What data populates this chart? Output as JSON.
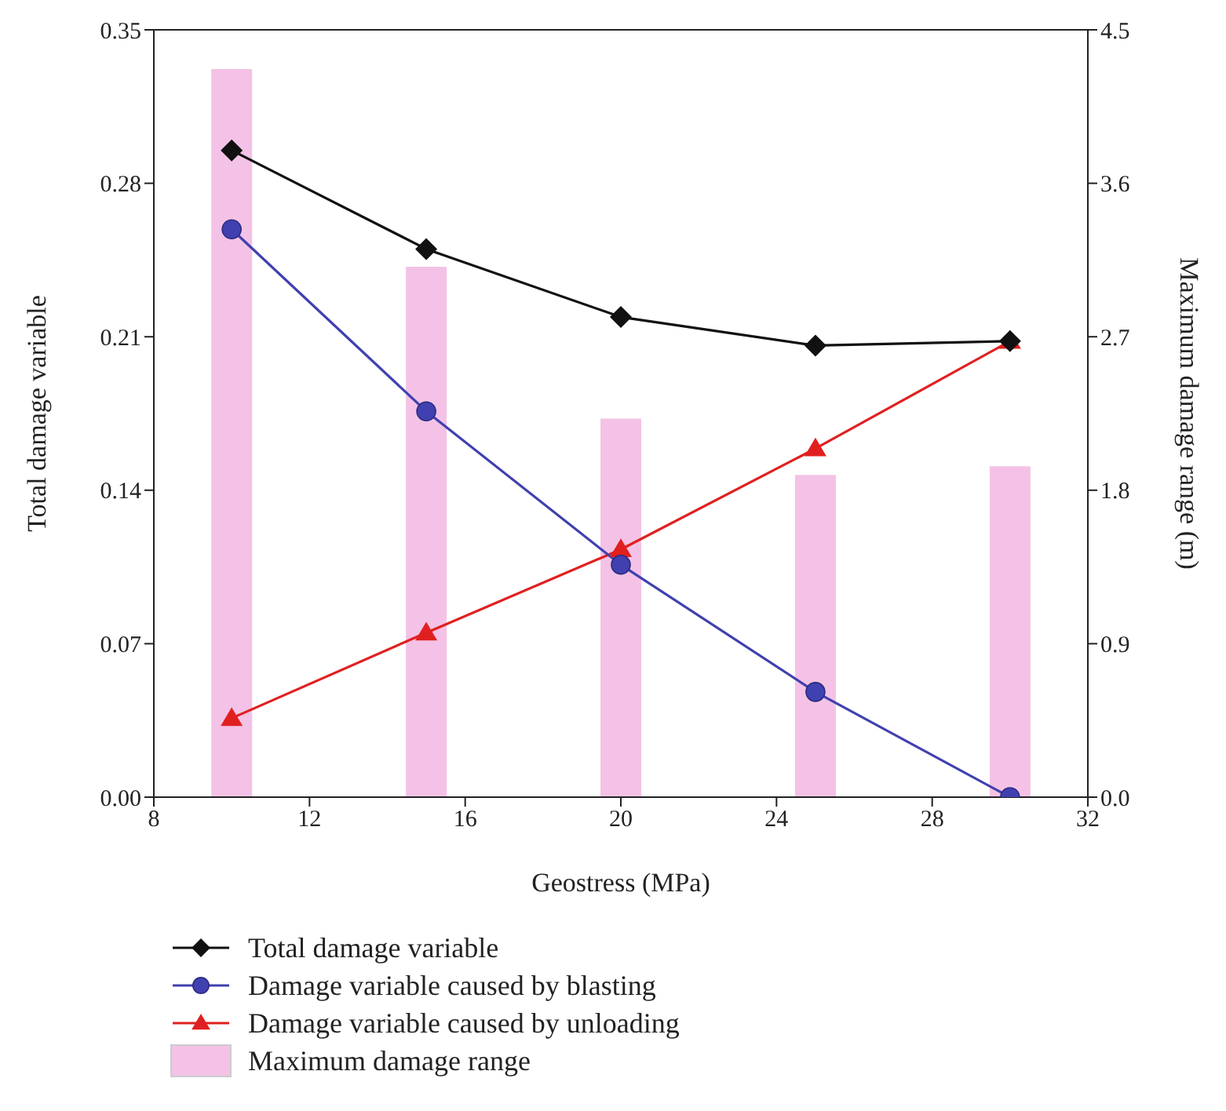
{
  "chart_data": {
    "type": "line",
    "xlabel": "Geostress (MPa)",
    "ylabel": "Total damage variable",
    "y2label": "Maximum damage range (m)",
    "x": [
      10,
      15,
      20,
      25,
      30
    ],
    "series": [
      {
        "name": "Total damage variable",
        "color": "#111111",
        "marker": "diamond",
        "values": [
          0.295,
          0.25,
          0.219,
          0.206,
          0.208
        ]
      },
      {
        "name": "Damage variable caused by blasting",
        "color": "#4040b0",
        "marker": "circle",
        "values": [
          0.259,
          0.176,
          0.106,
          0.048,
          0
        ]
      },
      {
        "name": "Damage variable caused by unloading",
        "color": "#e02020",
        "marker": "triangle",
        "values": [
          0.036,
          0.075,
          0.113,
          0.159,
          0.208
        ]
      },
      {
        "name": "Maximum damage range",
        "type": "bar",
        "axis": "y2",
        "color": "#f4c2e6",
        "values": [
          4.27,
          3.11,
          2.22,
          1.89,
          1.94
        ]
      }
    ],
    "xlim": [
      8,
      32
    ],
    "xticks": [
      8,
      12,
      16,
      20,
      24,
      28,
      32
    ],
    "ylim": [
      0,
      0.35
    ],
    "yticks": [
      {
        "value": 0,
        "label": "0.00"
      },
      {
        "value": 0.07,
        "label": "0.07"
      },
      {
        "value": 0.14,
        "label": "0.14"
      },
      {
        "value": 0.21,
        "label": "0.21"
      },
      {
        "value": 0.28,
        "label": "0.28"
      },
      {
        "value": 0.35,
        "label": "0.35"
      }
    ],
    "y2lim": [
      0,
      4.5
    ],
    "y2ticks": [
      {
        "value": 0,
        "label": "0.0"
      },
      {
        "value": 0.9,
        "label": "0.9"
      },
      {
        "value": 1.8,
        "label": "1.8"
      },
      {
        "value": 2.7,
        "label": "2.7"
      },
      {
        "value": 3.6,
        "label": "3.6"
      },
      {
        "value": 4.5,
        "label": "4.5"
      }
    ],
    "grid": false,
    "legend": "bottom"
  }
}
